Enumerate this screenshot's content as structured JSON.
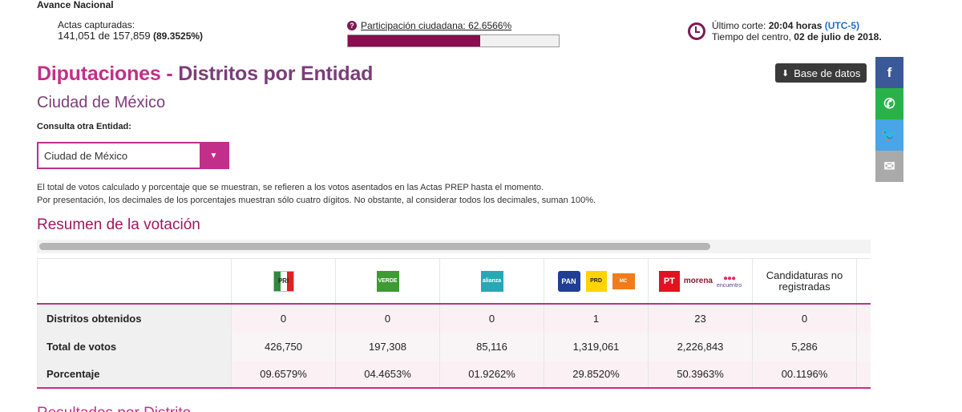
{
  "header": {
    "avance_label": "Avance Nacional",
    "actas_label": "Actas capturadas:",
    "actas_value": "141,051 de 157,859",
    "actas_pct": "(89.3525%)",
    "participacion_text": "Participación ciudadana: 62.6566%",
    "participacion_pct": 62.6566,
    "corte_label": "Último corte:",
    "corte_time": "20:04 horas",
    "corte_tz": "(UTC-5)",
    "corte_line2_prefix": "Tiempo del centro,",
    "corte_date": "02 de julio de 2018."
  },
  "page": {
    "title_main": "Diputaciones -",
    "title_sub": "Distritos por Entidad",
    "entity": "Ciudad de México",
    "database_button": "Base de datos",
    "consulta_label": "Consulta otra Entidad:",
    "select_value": "Ciudad de México",
    "note_line1": "El total de votos calculado y porcentaje que se muestran, se refieren a los votos asentados en las Actas PREP hasta el momento.",
    "note_line2": "Por presentación, los decimales de los porcentajes muestran sólo cuatro dígitos. No obstante, al considerar todos los decimales, suman 100%.",
    "resumen_title": "Resumen de la votación",
    "next_section": "Resultados por Distrito"
  },
  "share": {
    "facebook": "f",
    "whatsapp": "✆",
    "twitter": "🐦",
    "email": "✉"
  },
  "table": {
    "columns": [
      {
        "id": "pri",
        "logos": [
          "pri-logo"
        ]
      },
      {
        "id": "verde",
        "logos": [
          "verde-logo"
        ]
      },
      {
        "id": "alianza",
        "logos": [
          "nueva-alianza-logo"
        ]
      },
      {
        "id": "coalicion-pan",
        "logos": [
          "pan-logo",
          "prd-logo",
          "movimiento-ciudadano-logo"
        ]
      },
      {
        "id": "coalicion-morena",
        "logos": [
          "pt-logo",
          "morena-logo",
          "encuentro-social-logo"
        ]
      },
      {
        "id": "no-registradas",
        "label": "Candidaturas no registradas"
      }
    ],
    "rows": [
      {
        "label": "Distritos obtenidos",
        "values": [
          "0",
          "0",
          "0",
          "1",
          "23",
          "0"
        ]
      },
      {
        "label": "Total de votos",
        "values": [
          "426,750",
          "197,308",
          "85,116",
          "1,319,061",
          "2,226,843",
          "5,286"
        ]
      },
      {
        "label": "Porcentaje",
        "values": [
          "09.6579%",
          "04.4653%",
          "01.9262%",
          "29.8520%",
          "50.3963%",
          "00.1196%"
        ]
      }
    ],
    "logo_text": {
      "pri": "PRI",
      "verde": "VERDE",
      "alianza": "alianza",
      "pan": "PAN",
      "prd": "PRD",
      "mc": "MOVIMIENTO CIUDADANO",
      "pt": "PT",
      "morena": "morena",
      "pes": "encuentro"
    }
  },
  "colors": {
    "accent": "#c22f8a",
    "accent_dark": "#7c3d7a",
    "bar_fill": "#8a0d4e",
    "link_blue": "#1f6fc7"
  }
}
